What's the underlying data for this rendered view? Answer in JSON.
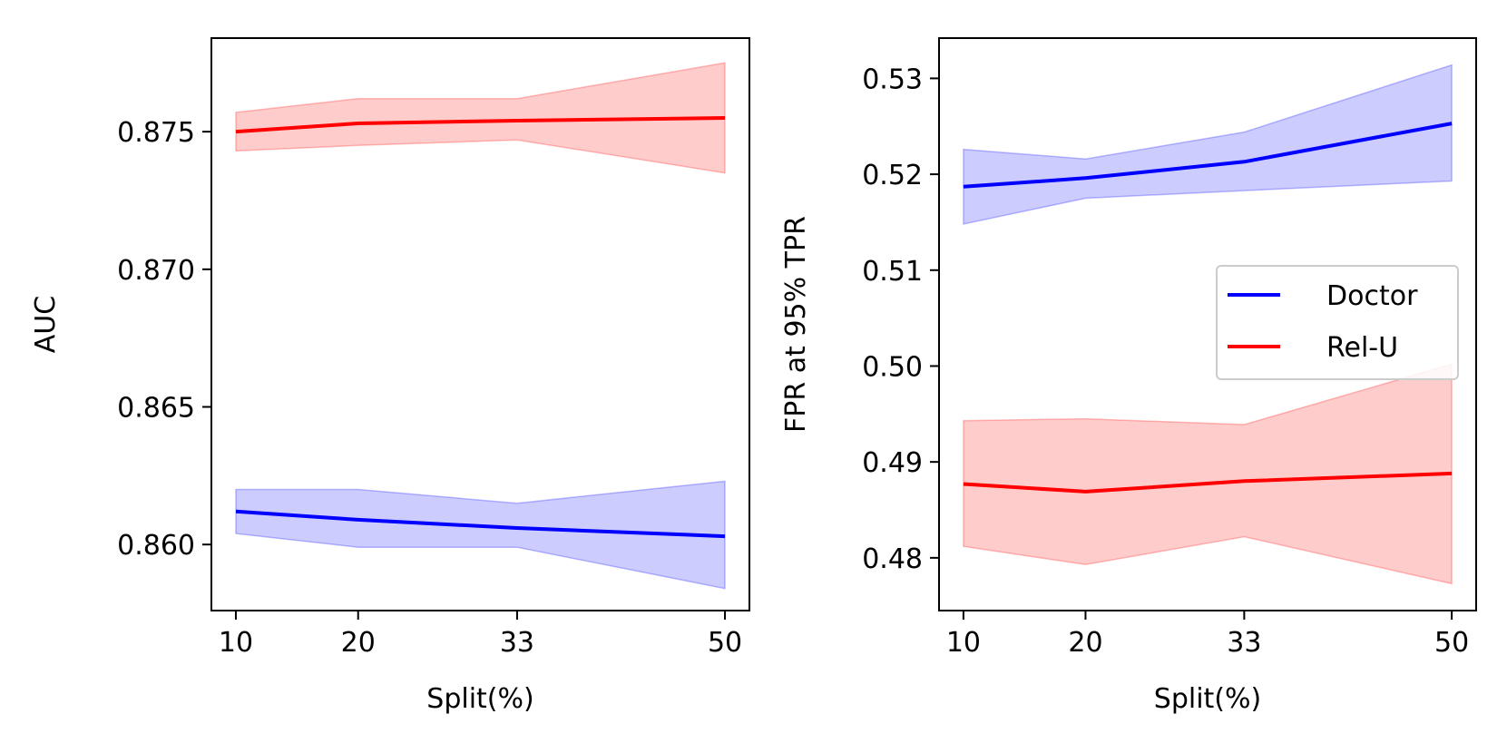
{
  "chart_data": [
    {
      "type": "line",
      "title": "",
      "xlabel": "Split(%)",
      "ylabel": "AUC",
      "x": [
        10,
        20,
        33,
        50
      ],
      "xticks": [
        10,
        20,
        33,
        50
      ],
      "xlim": [
        8,
        52
      ],
      "ylim": [
        0.8576,
        0.8784
      ],
      "yticks": [
        0.86,
        0.865,
        0.87,
        0.875
      ],
      "ytick_labels": [
        "0.860",
        "0.865",
        "0.870",
        "0.875"
      ],
      "grid": false,
      "series": [
        {
          "name": "Doctor",
          "color": "#0000ff",
          "fill": "#0000ff",
          "values": [
            0.8612,
            0.8609,
            0.8606,
            0.8603
          ],
          "lower": [
            0.8604,
            0.8599,
            0.8599,
            0.8584
          ],
          "upper": [
            0.862,
            0.862,
            0.8615,
            0.8623
          ]
        },
        {
          "name": "Rel-U",
          "color": "#ff0000",
          "fill": "#ff0000",
          "values": [
            0.875,
            0.8753,
            0.8754,
            0.8755
          ],
          "lower": [
            0.8743,
            0.8745,
            0.8747,
            0.8735
          ],
          "upper": [
            0.8757,
            0.8762,
            0.8762,
            0.8775
          ]
        }
      ]
    },
    {
      "type": "line",
      "title": "",
      "xlabel": "Split(%)",
      "ylabel": "FPR at 95% TPR",
      "x": [
        10,
        20,
        33,
        50
      ],
      "xticks": [
        10,
        20,
        33,
        50
      ],
      "xlim": [
        8,
        52
      ],
      "ylim": [
        0.4745,
        0.5342
      ],
      "yticks": [
        0.48,
        0.49,
        0.5,
        0.51,
        0.52,
        0.53
      ],
      "ytick_labels": [
        "0.48",
        "0.49",
        "0.50",
        "0.51",
        "0.52",
        "0.53"
      ],
      "grid": false,
      "legend": {
        "position": "center-right",
        "entries": [
          "Doctor",
          "Rel-U"
        ]
      },
      "series": [
        {
          "name": "Doctor",
          "color": "#0000ff",
          "fill": "#0000ff",
          "values": [
            0.5187,
            0.5196,
            0.5213,
            0.5253
          ],
          "lower": [
            0.5148,
            0.5175,
            0.5183,
            0.5193
          ],
          "upper": [
            0.5226,
            0.5216,
            0.5244,
            0.5314
          ]
        },
        {
          "name": "Rel-U",
          "color": "#ff0000",
          "fill": "#ff0000",
          "values": [
            0.4877,
            0.4869,
            0.488,
            0.4888
          ],
          "lower": [
            0.4812,
            0.4793,
            0.4822,
            0.4773
          ],
          "upper": [
            0.4943,
            0.4945,
            0.4939,
            0.5002
          ]
        }
      ]
    }
  ]
}
